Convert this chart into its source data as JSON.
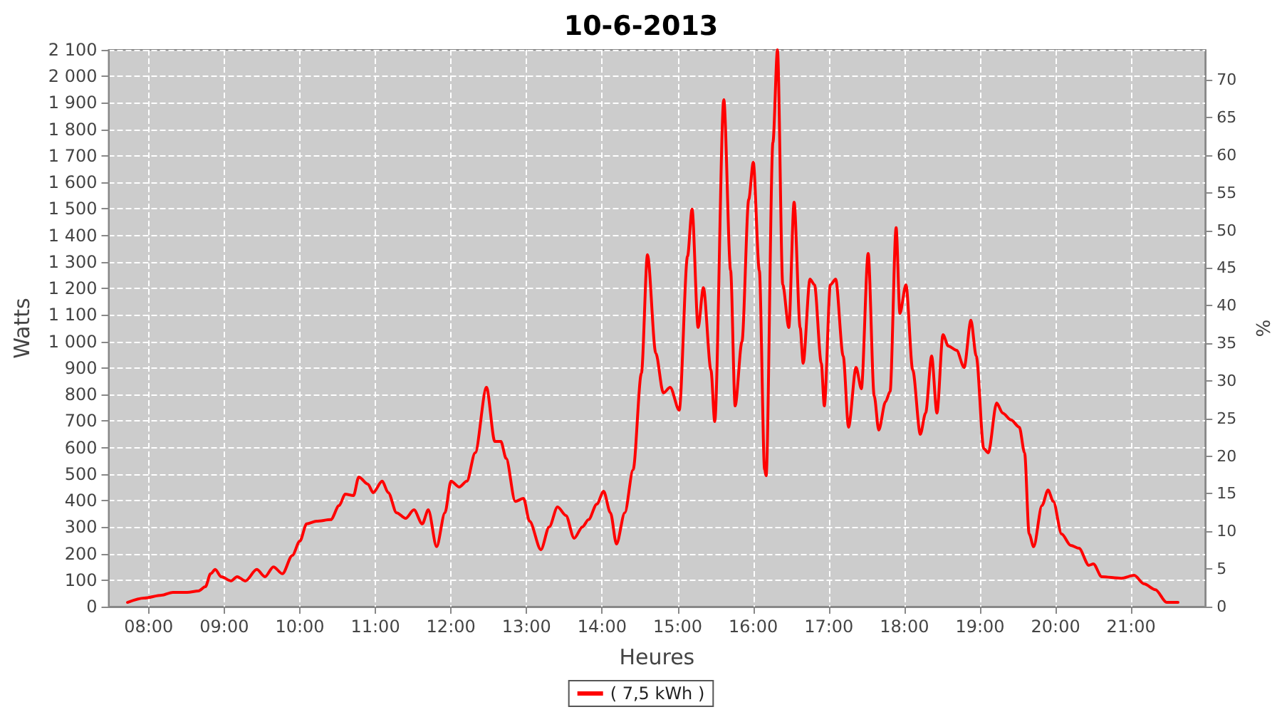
{
  "chart_data": {
    "type": "line",
    "title": "10-6-2013",
    "xlabel": "Heures",
    "ylabel": "Watts",
    "y2label": "%",
    "xlim": [
      7.47,
      21.98
    ],
    "xticks": [
      {
        "value": 8,
        "label": "08:00"
      },
      {
        "value": 9,
        "label": "09:00"
      },
      {
        "value": 10,
        "label": "10:00"
      },
      {
        "value": 11,
        "label": "11:00"
      },
      {
        "value": 12,
        "label": "12:00"
      },
      {
        "value": 13,
        "label": "13:00"
      },
      {
        "value": 14,
        "label": "14:00"
      },
      {
        "value": 15,
        "label": "15:00"
      },
      {
        "value": 16,
        "label": "16:00"
      },
      {
        "value": 17,
        "label": "17:00"
      },
      {
        "value": 18,
        "label": "18:00"
      },
      {
        "value": 19,
        "label": "19:00"
      },
      {
        "value": 20,
        "label": "20:00"
      },
      {
        "value": 21,
        "label": "21:00"
      }
    ],
    "ylim": [
      0,
      2100
    ],
    "yticks": [
      0,
      100,
      200,
      300,
      400,
      500,
      600,
      700,
      800,
      900,
      {
        "value": 1000,
        "label": "1 000"
      },
      {
        "value": 1100,
        "label": "1 100"
      },
      {
        "value": 1200,
        "label": "1 200"
      },
      {
        "value": 1300,
        "label": "1 300"
      },
      {
        "value": 1400,
        "label": "1 400"
      },
      {
        "value": 1500,
        "label": "1 500"
      },
      {
        "value": 1600,
        "label": "1 600"
      },
      {
        "value": 1700,
        "label": "1 700"
      },
      {
        "value": 1800,
        "label": "1 800"
      },
      {
        "value": 1900,
        "label": "1 900"
      },
      {
        "value": 2000,
        "label": "2 000"
      },
      {
        "value": 2100,
        "label": "2 100"
      }
    ],
    "y2lim": [
      0,
      74
    ],
    "y2ticks": [
      0,
      5,
      10,
      15,
      20,
      25,
      30,
      35,
      40,
      45,
      50,
      55,
      60,
      65,
      70
    ],
    "grid": true,
    "legend": "bottom",
    "marker": "none",
    "line_style": "solid",
    "series": [
      {
        "name": "( 7,5 kWh )",
        "color": "#ff0000",
        "x": [
          7.72,
          7.94,
          8.17,
          8.32,
          8.51,
          8.66,
          8.75,
          8.82,
          8.88,
          8.96,
          9.09,
          9.17,
          9.28,
          9.43,
          9.54,
          9.65,
          9.77,
          9.9,
          10.0,
          10.09,
          10.22,
          10.41,
          10.52,
          10.6,
          10.71,
          10.78,
          10.9,
          10.97,
          11.09,
          11.17,
          11.28,
          11.4,
          11.51,
          11.62,
          11.7,
          11.81,
          11.92,
          12.0,
          12.11,
          12.21,
          12.32,
          12.47,
          12.58,
          12.66,
          12.73,
          12.85,
          12.96,
          13.04,
          13.19,
          13.3,
          13.41,
          13.52,
          13.63,
          13.74,
          13.82,
          13.93,
          14.02,
          14.11,
          14.19,
          14.3,
          14.41,
          14.52,
          14.6,
          14.71,
          14.81,
          14.9,
          15.02,
          15.13,
          15.19,
          15.27,
          15.34,
          15.44,
          15.49,
          15.61,
          15.7,
          15.76,
          15.85,
          15.94,
          16.0,
          16.08,
          16.15,
          16.17,
          16.26,
          16.32,
          16.39,
          16.47,
          16.54,
          16.62,
          16.66,
          16.75,
          16.81,
          16.9,
          16.94,
          17.02,
          17.09,
          17.19,
          17.26,
          17.36,
          17.43,
          17.52,
          17.6,
          17.66,
          17.75,
          17.81,
          17.89,
          17.94,
          18.02,
          18.11,
          18.21,
          18.28,
          18.36,
          18.43,
          18.51,
          18.58,
          18.69,
          18.79,
          18.88,
          18.95,
          19.05,
          19.11,
          19.22,
          19.3,
          19.41,
          19.52,
          19.59,
          19.65,
          19.71,
          19.82,
          19.9,
          19.97,
          20.08,
          20.2,
          20.31,
          20.44,
          20.5,
          20.61,
          20.87,
          21.04,
          21.17,
          21.32,
          21.47,
          21.62
        ],
        "values": [
          16,
          32,
          43,
          54,
          54,
          59,
          75,
          124,
          140,
          113,
          97,
          113,
          97,
          140,
          113,
          150,
          124,
          193,
          247,
          312,
          322,
          328,
          381,
          424,
          419,
          489,
          462,
          430,
          473,
          430,
          354,
          333,
          365,
          312,
          365,
          226,
          354,
          473,
          451,
          473,
          580,
          827,
          623,
          623,
          559,
          397,
          408,
          322,
          215,
          301,
          376,
          344,
          258,
          301,
          328,
          387,
          435,
          354,
          236,
          354,
          516,
          881,
          1327,
          956,
          806,
          827,
          741,
          1321,
          1499,
          1053,
          1203,
          892,
          698,
          1912,
          1268,
          757,
          999,
          1536,
          1676,
          1268,
          516,
          494,
          1751,
          2100,
          1214,
          1053,
          1525,
          1053,
          918,
          1235,
          1214,
          918,
          757,
          1214,
          1235,
          945,
          677,
          902,
          822,
          1332,
          795,
          666,
          773,
          811,
          1429,
          1106,
          1214,
          892,
          650,
          730,
          945,
          730,
          1026,
          983,
          967,
          902,
          1080,
          945,
          596,
          580,
          768,
          730,
          704,
          677,
          580,
          274,
          226,
          381,
          440,
          397,
          274,
          231,
          220,
          156,
          161,
          113,
          107,
          118,
          86,
          64,
          16,
          16
        ]
      }
    ]
  }
}
